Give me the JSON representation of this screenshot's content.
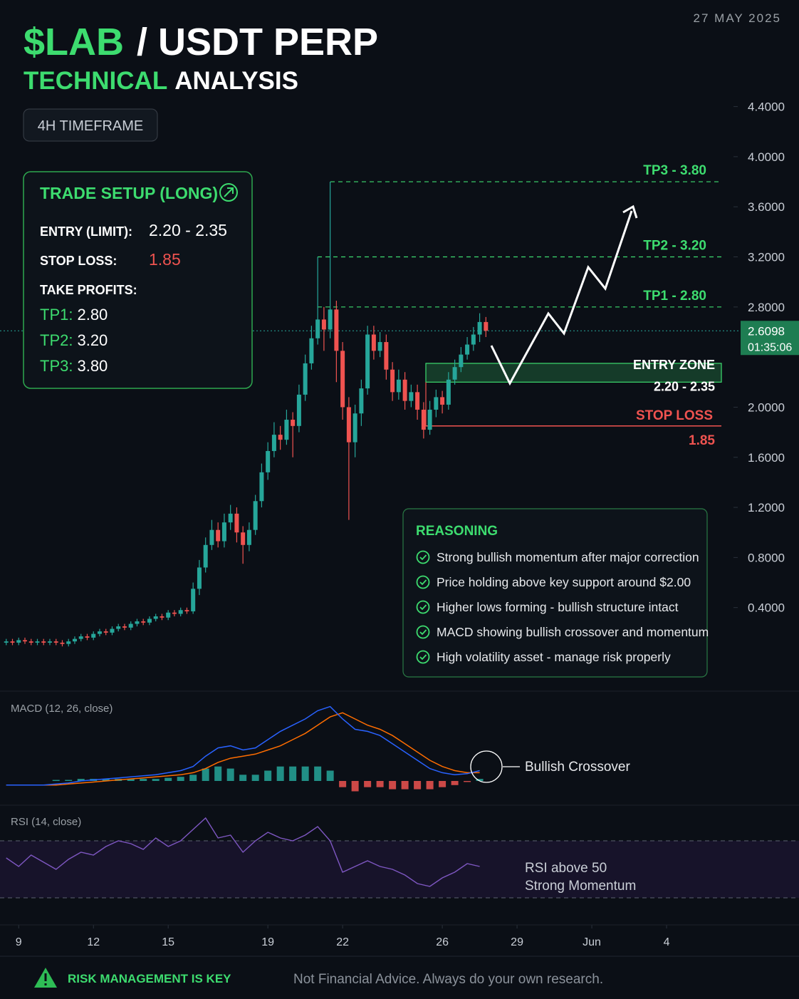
{
  "header": {
    "ticker": "$LAB",
    "pair": "/ USDT PERP",
    "title_accent": "TECHNICAL",
    "title_rest": "ANALYSIS",
    "date": "27 MAY 2025",
    "timeframe": "4H TIMEFRAME"
  },
  "trade_setup": {
    "title": "TRADE SETUP (LONG)",
    "rows": [
      {
        "label": "ENTRY (LIMIT):",
        "value": "2.20 - 2.35"
      },
      {
        "label": "STOP LOSS:",
        "value": "1.85"
      }
    ],
    "take_profits_label": "TAKE PROFITS:",
    "take_profits": [
      {
        "label": "TP1:",
        "value": "2.80"
      },
      {
        "label": "TP2:",
        "value": "3.20"
      },
      {
        "label": "TP3:",
        "value": "3.80"
      }
    ]
  },
  "reasoning": {
    "title": "REASONING",
    "items": [
      "Strong bullish momentum after major correction",
      "Price holding above key support around $2.00",
      "Higher lows forming - bullish structure intact",
      "MACD showing bullish crossover and momentum",
      "High volatility asset - manage risk properly"
    ]
  },
  "footer": {
    "warning": "RISK MANAGEMENT IS KEY",
    "disclaimer": "Not Financial Advice. Always do your own research."
  },
  "chart_data": [
    {
      "type": "candlestick",
      "x": [
        8.5,
        8.75,
        9,
        9.25,
        9.5,
        9.75,
        10,
        10.25,
        10.5,
        10.75,
        11,
        11.25,
        11.5,
        11.75,
        12,
        12.25,
        12.5,
        12.75,
        13,
        13.25,
        13.5,
        13.75,
        14,
        14.25,
        14.5,
        14.75,
        15,
        15.25,
        15.5,
        15.75,
        16,
        16.25,
        16.5,
        16.75,
        17,
        17.25,
        17.5,
        17.75,
        18,
        18.25,
        18.5,
        18.75,
        19,
        19.25,
        19.5,
        19.75,
        20,
        20.25,
        20.5,
        20.75,
        21,
        21.25,
        21.5,
        21.75,
        22,
        22.25,
        22.5,
        22.75,
        23,
        23.25,
        23.5,
        23.75,
        24,
        24.25,
        24.5,
        24.75,
        25,
        25.25,
        25.5,
        25.75,
        26,
        26.25,
        26.5,
        26.75,
        27,
        27.25,
        27.5,
        27.75
      ],
      "open": [
        0.12,
        0.13,
        0.12,
        0.14,
        0.13,
        0.12,
        0.13,
        0.12,
        0.13,
        0.12,
        0.11,
        0.13,
        0.15,
        0.17,
        0.16,
        0.19,
        0.21,
        0.2,
        0.23,
        0.25,
        0.24,
        0.27,
        0.29,
        0.28,
        0.31,
        0.33,
        0.32,
        0.36,
        0.35,
        0.38,
        0.37,
        0.55,
        0.72,
        0.9,
        1.02,
        0.93,
        1.08,
        1.15,
        1,
        0.9,
        1.02,
        1.25,
        1.48,
        1.65,
        1.78,
        1.74,
        1.9,
        1.85,
        2.1,
        2.35,
        2.55,
        2.7,
        2.62,
        2.78,
        2.45,
        2,
        1.72,
        1.95,
        2.15,
        2.58,
        2.45,
        2.52,
        2.3,
        2.12,
        2.22,
        2.05,
        2.12,
        1.98,
        1.82,
        1.98,
        2.08,
        2.02,
        2.22,
        2.32,
        2.42,
        2.5,
        2.58,
        2.68
      ],
      "high": [
        0.15,
        0.15,
        0.16,
        0.16,
        0.15,
        0.15,
        0.15,
        0.15,
        0.15,
        0.14,
        0.15,
        0.17,
        0.19,
        0.19,
        0.21,
        0.23,
        0.23,
        0.25,
        0.27,
        0.27,
        0.29,
        0.31,
        0.31,
        0.33,
        0.35,
        0.35,
        0.38,
        0.38,
        0.4,
        0.4,
        0.6,
        0.78,
        0.96,
        1.1,
        1.08,
        1.15,
        1.22,
        1.2,
        1.05,
        1.08,
        1.3,
        1.55,
        1.72,
        1.88,
        1.85,
        1.98,
        1.96,
        2.18,
        2.42,
        2.65,
        3.2,
        2.8,
        3.8,
        2.85,
        2.52,
        2.08,
        2.02,
        2.22,
        2.65,
        2.65,
        2.6,
        2.58,
        2.36,
        2.3,
        2.28,
        2.18,
        2.18,
        2.04,
        2.05,
        2.14,
        2.13,
        2.28,
        2.38,
        2.48,
        2.56,
        2.64,
        2.75,
        2.72
      ],
      "low": [
        0.1,
        0.1,
        0.1,
        0.11,
        0.1,
        0.1,
        0.1,
        0.1,
        0.1,
        0.09,
        0.09,
        0.11,
        0.13,
        0.14,
        0.14,
        0.17,
        0.18,
        0.18,
        0.21,
        0.22,
        0.22,
        0.25,
        0.26,
        0.26,
        0.29,
        0.3,
        0.3,
        0.33,
        0.33,
        0.35,
        0.35,
        0.5,
        0.68,
        0.86,
        0.88,
        0.88,
        1.02,
        0.92,
        0.75,
        0.85,
        0.98,
        1.2,
        1.42,
        1.6,
        1.66,
        1.7,
        1.6,
        1.8,
        2.05,
        2.3,
        2.5,
        2.45,
        2.55,
        2.2,
        1.9,
        1.1,
        1.6,
        1.85,
        2.1,
        2.38,
        2.4,
        2.22,
        2.05,
        2.06,
        1.98,
        2,
        1.9,
        1.75,
        1.78,
        1.92,
        1.95,
        1.98,
        2.18,
        2.28,
        2.38,
        2.45,
        2.52,
        2.56
      ],
      "close": [
        0.13,
        0.12,
        0.14,
        0.13,
        0.12,
        0.13,
        0.12,
        0.13,
        0.12,
        0.11,
        0.13,
        0.15,
        0.17,
        0.16,
        0.19,
        0.21,
        0.2,
        0.23,
        0.25,
        0.24,
        0.27,
        0.29,
        0.28,
        0.31,
        0.33,
        0.32,
        0.36,
        0.35,
        0.38,
        0.37,
        0.55,
        0.72,
        0.9,
        1.02,
        0.93,
        1.08,
        1.15,
        1,
        0.9,
        1.02,
        1.25,
        1.48,
        1.65,
        1.78,
        1.74,
        1.9,
        1.85,
        2.1,
        2.35,
        2.55,
        2.7,
        2.62,
        2.78,
        2.45,
        2,
        1.72,
        1.95,
        2.15,
        2.58,
        2.45,
        2.52,
        2.3,
        2.12,
        2.22,
        2.05,
        2.12,
        1.98,
        1.82,
        1.98,
        2.08,
        2.02,
        2.22,
        2.32,
        2.42,
        2.5,
        2.58,
        2.68,
        2.61
      ],
      "up_color": "#26a69a",
      "down_color": "#ef5350",
      "xlim": [
        8.25,
        37.4
      ],
      "xticks": [
        9,
        12,
        15,
        19,
        22,
        26,
        29,
        {
          "value": 32,
          "label": "Jun"
        },
        {
          "value": 35,
          "label": "4"
        }
      ],
      "ylim": [
        0,
        4.5
      ],
      "yticks": [
        {
          "value": 4.4,
          "label": "4.4000"
        },
        {
          "value": 4,
          "label": "4.0000"
        },
        {
          "value": 3.6,
          "label": "3.6000"
        },
        {
          "value": 3.2,
          "label": "3.2000"
        },
        {
          "value": 2.8,
          "label": "2.8000"
        },
        {
          "value": 2,
          "label": "2.0000"
        },
        {
          "value": 1.6,
          "label": "1.6000"
        },
        {
          "value": 1.2,
          "label": "1.2000"
        },
        {
          "value": 0.8,
          "label": "0.8000"
        },
        {
          "value": 0.4,
          "label": "0.4000"
        }
      ],
      "levels": [
        {
          "label": "TP3 - 3.80",
          "value": 3.8,
          "color": "#3ddc6f"
        },
        {
          "label": "TP2 - 3.20",
          "value": 3.2,
          "color": "#3ddc6f"
        },
        {
          "label": "TP1 - 2.80",
          "value": 2.8,
          "color": "#3ddc6f"
        }
      ],
      "entry_zone": {
        "label": "ENTRY ZONE",
        "range_label": "2.20 - 2.35",
        "low": 2.2,
        "high": 2.35,
        "color": "#3ddc6f"
      },
      "stop_loss": {
        "label": "STOP LOSS",
        "value_label": "1.85",
        "value": 1.85,
        "color": "#ef5350"
      },
      "last_price": 2.6098,
      "countdown": "01:35:06"
    },
    {
      "type": "macd",
      "title": "MACD (12, 26, close)",
      "x": [
        8.5,
        9,
        9.5,
        10,
        10.5,
        11,
        11.5,
        12,
        12.5,
        13,
        13.5,
        14,
        14.5,
        15,
        15.5,
        16,
        16.5,
        17,
        17.5,
        18,
        18.5,
        19,
        19.5,
        20,
        20.5,
        21,
        21.5,
        22,
        22.5,
        23,
        23.5,
        24,
        24.5,
        25,
        25.5,
        26,
        26.5,
        27,
        27.5
      ],
      "ylim": [
        -0.1,
        0.4
      ],
      "macd": {
        "color": "#2962ff",
        "values": [
          -0.02,
          -0.02,
          -0.02,
          -0.02,
          -0.015,
          -0.01,
          0,
          0.005,
          0.01,
          0.015,
          0.02,
          0.025,
          0.03,
          0.04,
          0.05,
          0.07,
          0.12,
          0.16,
          0.17,
          0.15,
          0.16,
          0.2,
          0.24,
          0.27,
          0.3,
          0.34,
          0.36,
          0.3,
          0.25,
          0.24,
          0.22,
          0.18,
          0.14,
          0.1,
          0.06,
          0.04,
          0.03,
          0.035,
          0.05
        ]
      },
      "signal": {
        "color": "#ff6d00",
        "values": [
          -0.02,
          -0.02,
          -0.02,
          -0.02,
          -0.02,
          -0.015,
          -0.01,
          -0.005,
          0,
          0.005,
          0.01,
          0.015,
          0.02,
          0.025,
          0.03,
          0.04,
          0.06,
          0.09,
          0.11,
          0.12,
          0.13,
          0.15,
          0.17,
          0.2,
          0.23,
          0.27,
          0.31,
          0.33,
          0.3,
          0.27,
          0.25,
          0.22,
          0.18,
          0.14,
          0.1,
          0.07,
          0.05,
          0.04,
          0.04
        ]
      },
      "histogram": {
        "up_color": "#26a69a",
        "down_color": "#ef5350",
        "values": [
          0,
          0,
          0,
          0,
          0.005,
          0.005,
          0.01,
          0.01,
          0.01,
          0.01,
          0.01,
          0.01,
          0.01,
          0.015,
          0.02,
          0.03,
          0.06,
          0.07,
          0.06,
          0.03,
          0.03,
          0.05,
          0.07,
          0.07,
          0.07,
          0.07,
          0.05,
          -0.03,
          -0.05,
          -0.03,
          -0.03,
          -0.04,
          -0.04,
          -0.04,
          -0.04,
          -0.03,
          -0.02,
          -0.005,
          0.01
        ]
      },
      "annotation": "Bullish Crossover"
    },
    {
      "type": "rsi",
      "title": "RSI (14, close)",
      "x": [
        8.5,
        9,
        9.5,
        10,
        10.5,
        11,
        11.5,
        12,
        12.5,
        13,
        13.5,
        14,
        14.5,
        15,
        15.5,
        16,
        16.5,
        17,
        17.5,
        18,
        18.5,
        19,
        19.5,
        20,
        20.5,
        21,
        21.5,
        22,
        22.5,
        23,
        23.5,
        24,
        24.5,
        25,
        25.5,
        26,
        26.5,
        27,
        27.5
      ],
      "values": [
        58,
        52,
        60,
        55,
        50,
        57,
        62,
        60,
        66,
        70,
        68,
        64,
        72,
        66,
        70,
        78,
        86,
        72,
        74,
        62,
        70,
        76,
        72,
        70,
        74,
        80,
        70,
        48,
        52,
        56,
        52,
        50,
        46,
        40,
        38,
        44,
        48,
        54,
        52
      ],
      "color": "#7e57c2",
      "band_color": "#1a1430",
      "ylim": [
        10,
        90
      ],
      "levels": [
        30,
        70
      ],
      "annotation": [
        "RSI above 50",
        "Strong Momentum"
      ]
    }
  ]
}
